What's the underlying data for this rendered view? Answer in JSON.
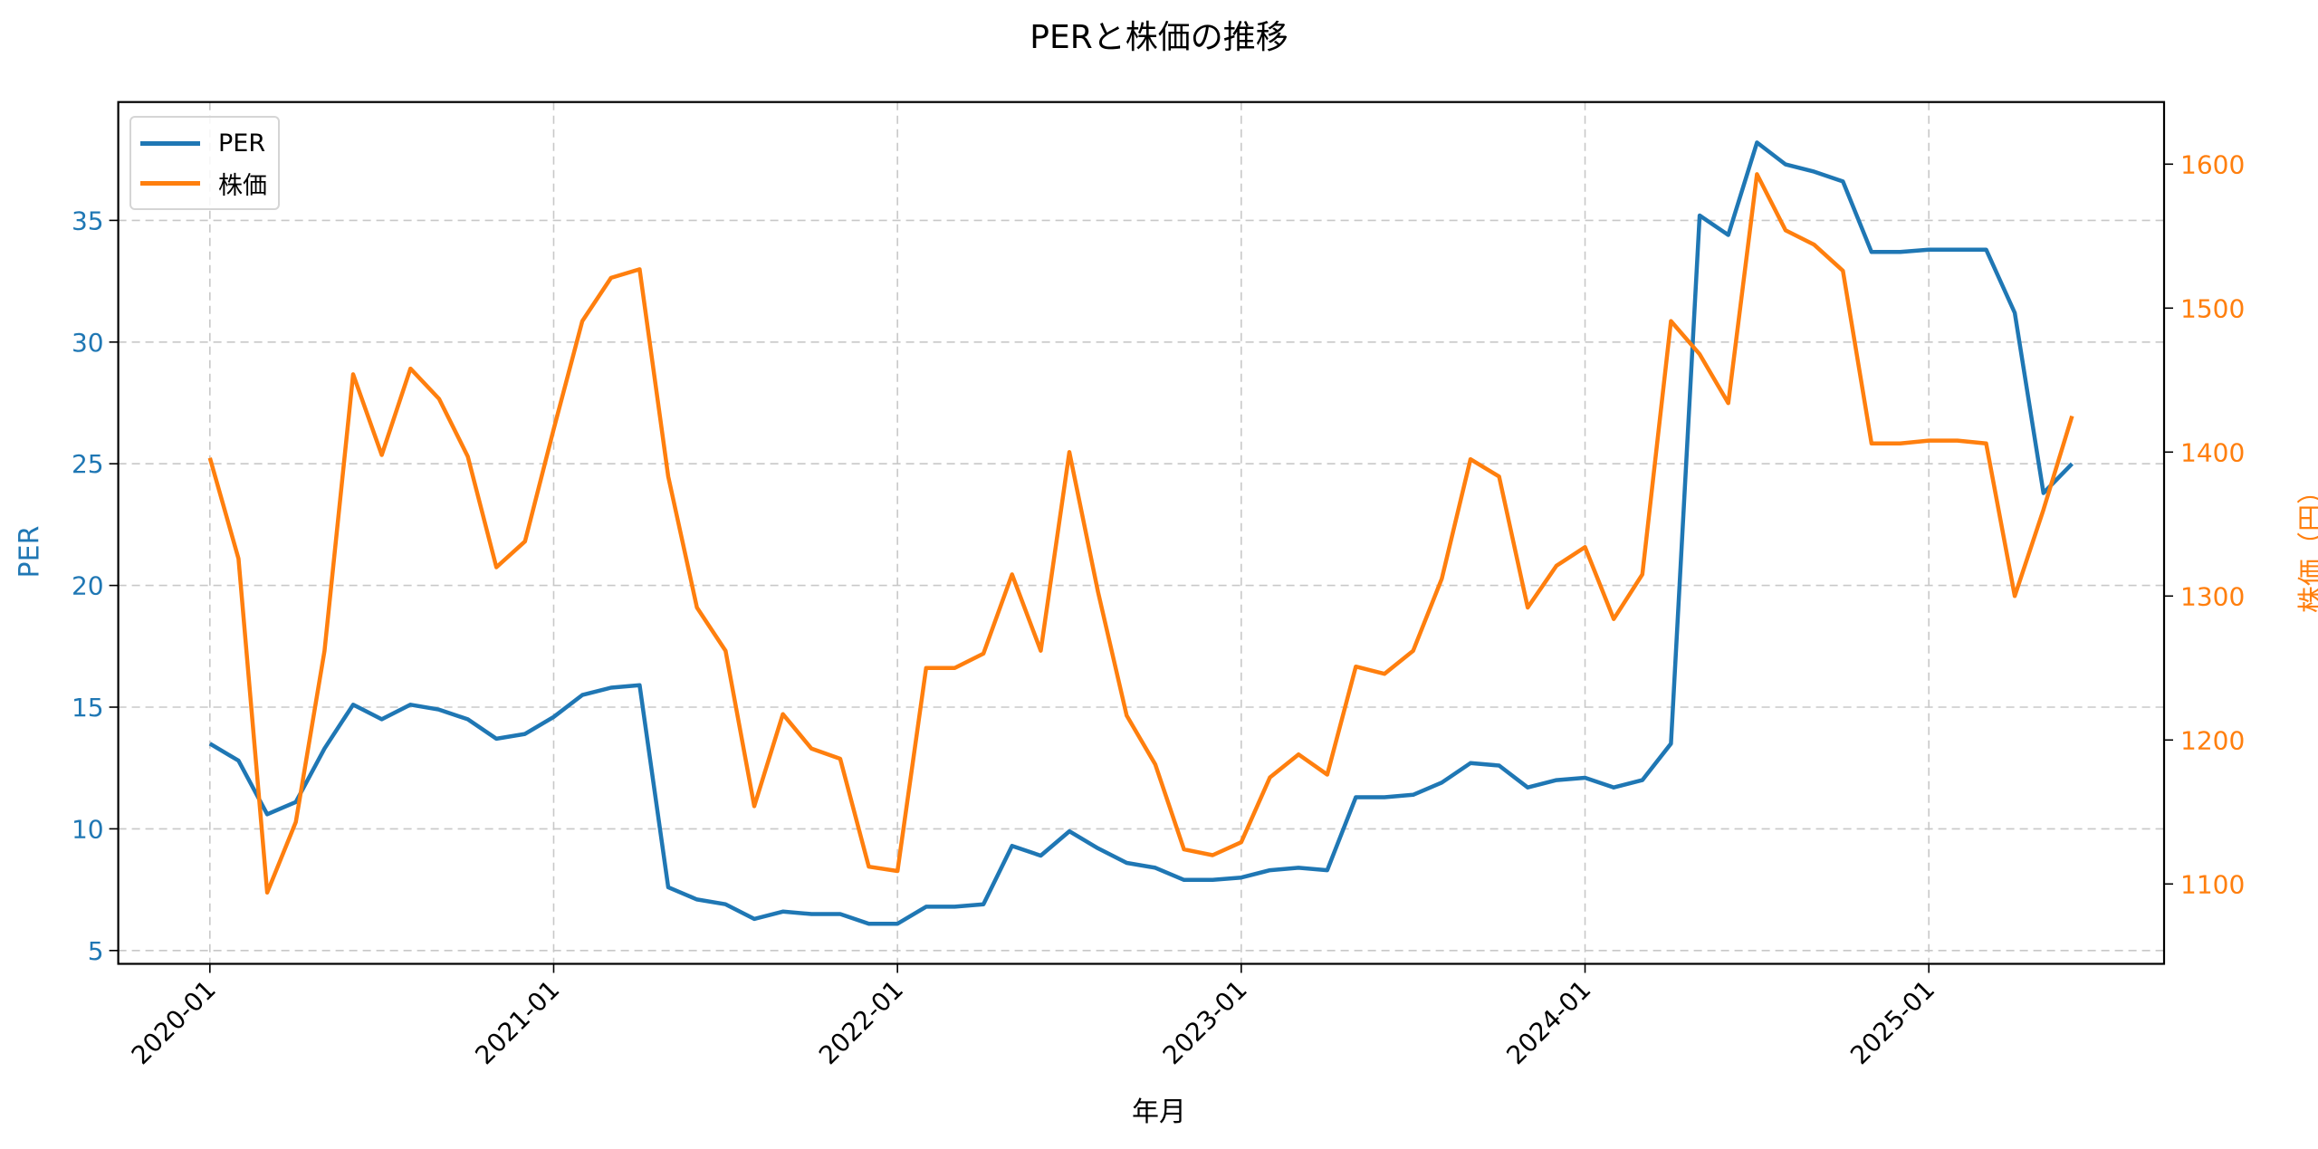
{
  "chart_data": {
    "type": "line",
    "title": "PERと株価の推移",
    "xlabel": "年月",
    "ylabel": "PER",
    "ylabel_right": "株価（円）",
    "x": [
      "2020-01",
      "2020-02",
      "2020-03",
      "2020-04",
      "2020-05",
      "2020-06",
      "2020-07",
      "2020-08",
      "2020-09",
      "2020-10",
      "2020-11",
      "2020-12",
      "2021-01",
      "2021-02",
      "2021-03",
      "2021-04",
      "2021-05",
      "2021-06",
      "2021-07",
      "2021-08",
      "2021-09",
      "2021-10",
      "2021-11",
      "2021-12",
      "2022-01",
      "2022-02",
      "2022-03",
      "2022-04",
      "2022-05",
      "2022-06",
      "2022-07",
      "2022-08",
      "2022-09",
      "2022-10",
      "2022-11",
      "2022-12",
      "2023-01",
      "2023-02",
      "2023-03",
      "2023-04",
      "2023-05",
      "2023-06",
      "2023-07",
      "2023-08",
      "2023-09",
      "2023-10",
      "2023-11",
      "2023-12",
      "2024-01",
      "2024-02",
      "2024-03",
      "2024-04",
      "2024-05",
      "2024-06",
      "2024-07",
      "2024-08",
      "2024-09",
      "2024-10",
      "2024-11",
      "2024-12",
      "2025-01",
      "2025-02",
      "2025-03",
      "2025-04",
      "2025-05",
      "2025-06"
    ],
    "xticks": [
      "2020-01",
      "2021-01",
      "2022-01",
      "2023-01",
      "2024-01",
      "2025-01"
    ],
    "series": [
      {
        "name": "PER",
        "axis": "left",
        "color": "#1f77b4",
        "values": [
          13.5,
          12.8,
          10.6,
          11.1,
          13.3,
          15.1,
          14.5,
          15.1,
          14.9,
          14.5,
          13.7,
          13.9,
          14.6,
          15.5,
          15.8,
          15.9,
          7.6,
          7.1,
          6.9,
          6.3,
          6.6,
          6.5,
          6.5,
          6.1,
          6.1,
          6.8,
          6.8,
          6.9,
          9.3,
          8.9,
          9.9,
          9.2,
          8.6,
          8.4,
          7.9,
          7.9,
          8.0,
          8.3,
          8.4,
          8.3,
          11.3,
          11.3,
          11.4,
          11.9,
          12.7,
          12.6,
          11.7,
          12.0,
          12.1,
          11.7,
          12.0,
          13.5,
          35.2,
          34.4,
          38.2,
          37.3,
          37.0,
          36.6,
          33.7,
          33.7,
          33.8,
          33.8,
          33.8,
          31.2,
          23.8,
          25.0
        ]
      },
      {
        "name": "株価",
        "axis": "right",
        "color": "#ff7f0e",
        "values": [
          1396,
          1326,
          1094,
          1143,
          1262,
          1454,
          1398,
          1458,
          1437,
          1397,
          1320,
          1338,
          1416,
          1491,
          1521,
          1527,
          1383,
          1292,
          1262,
          1154,
          1218,
          1194,
          1187,
          1112,
          1109,
          1250,
          1250,
          1260,
          1315,
          1262,
          1400,
          1303,
          1217,
          1183,
          1124,
          1120,
          1129,
          1174,
          1190,
          1176,
          1251,
          1246,
          1262,
          1312,
          1395,
          1383,
          1292,
          1321,
          1334,
          1284,
          1315,
          1491,
          1468,
          1434,
          1593,
          1554,
          1544,
          1526,
          1406,
          1406,
          1408,
          1408,
          1406,
          1300,
          1360,
          1425
        ]
      }
    ],
    "yticks_left": [
      5,
      10,
      15,
      20,
      25,
      30,
      35
    ],
    "yticks_right": [
      1100,
      1200,
      1300,
      1400,
      1500,
      1600
    ],
    "ylim": [
      4.5,
      39.4
    ],
    "ylim_right": [
      1044,
      1640
    ],
    "grid": true,
    "legend_position": "upper left"
  },
  "legend": {
    "items": [
      {
        "label": "PER",
        "color": "#1f77b4"
      },
      {
        "label": "株価",
        "color": "#ff7f0e"
      }
    ]
  }
}
